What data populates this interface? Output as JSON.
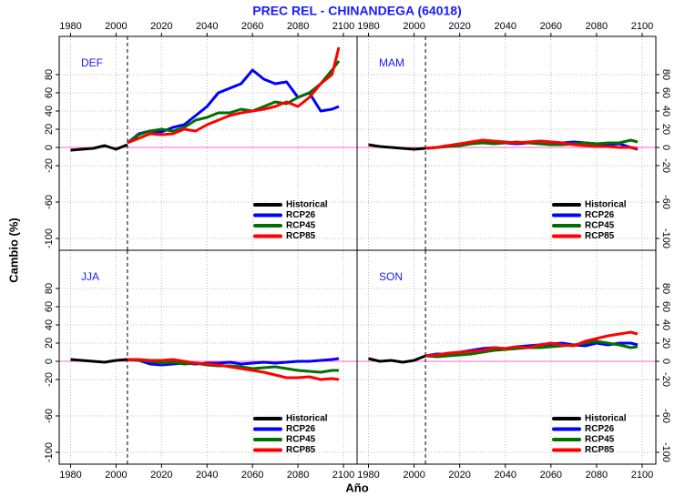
{
  "title": "PREC REL - CHINANDEGA (64018)",
  "xlabel": "Año",
  "ylabel": "Cambio (%)",
  "chart_data": [
    {
      "type": "line",
      "title": "DEF",
      "x": [
        1980,
        1985,
        1990,
        1995,
        2000,
        2005,
        2010,
        2015,
        2020,
        2025,
        2030,
        2035,
        2040,
        2045,
        2050,
        2055,
        2060,
        2065,
        2070,
        2075,
        2080,
        2085,
        2090,
        2095,
        2098
      ],
      "xlim": [
        1975,
        2106
      ],
      "ylim": [
        -113,
        122
      ],
      "xticks": [
        1980,
        2000,
        2020,
        2040,
        2060,
        2080,
        2100
      ],
      "yticks": [
        -100,
        -60,
        -20,
        0,
        20,
        40,
        60,
        80
      ],
      "grid": true,
      "reference_x": 2005,
      "reference_y": 0,
      "legend": "lower-right",
      "series": [
        {
          "name": "Historical",
          "color": "#000000",
          "values": [
            -3,
            -2,
            -1,
            2,
            -2,
            3,
            null,
            null,
            null,
            null,
            null,
            null,
            null,
            null,
            null,
            null,
            null,
            null,
            null,
            null,
            null,
            null,
            null,
            null,
            null
          ]
        },
        {
          "name": "RCP26",
          "color": "#0000ff",
          "values": [
            null,
            null,
            null,
            null,
            null,
            5,
            15,
            18,
            17,
            22,
            25,
            35,
            45,
            60,
            65,
            70,
            85,
            75,
            70,
            72,
            55,
            60,
            40,
            42,
            45
          ]
        },
        {
          "name": "RCP45",
          "color": "#007000",
          "values": [
            null,
            null,
            null,
            null,
            null,
            5,
            14,
            18,
            20,
            18,
            22,
            30,
            33,
            38,
            38,
            42,
            40,
            45,
            50,
            48,
            55,
            60,
            70,
            85,
            95
          ]
        },
        {
          "name": "RCP85",
          "color": "#ff0000",
          "values": [
            null,
            null,
            null,
            null,
            null,
            5,
            10,
            15,
            14,
            15,
            20,
            18,
            25,
            30,
            35,
            38,
            40,
            42,
            45,
            50,
            45,
            55,
            70,
            80,
            110
          ]
        }
      ]
    },
    {
      "type": "line",
      "title": "MAM",
      "x": [
        1980,
        1985,
        1990,
        1995,
        2000,
        2005,
        2010,
        2015,
        2020,
        2025,
        2030,
        2035,
        2040,
        2045,
        2050,
        2055,
        2060,
        2065,
        2070,
        2075,
        2080,
        2085,
        2090,
        2095,
        2098
      ],
      "xlim": [
        1975,
        2106
      ],
      "ylim": [
        -113,
        122
      ],
      "xticks": [
        1980,
        2000,
        2020,
        2040,
        2060,
        2080,
        2100
      ],
      "yticks": [
        -100,
        -60,
        -20,
        0,
        20,
        40,
        60,
        80
      ],
      "grid": true,
      "reference_x": 2005,
      "reference_y": 0,
      "legend": "lower-right",
      "series": [
        {
          "name": "Historical",
          "color": "#000000",
          "values": [
            3,
            1,
            0,
            -1,
            -2,
            -1,
            null,
            null,
            null,
            null,
            null,
            null,
            null,
            null,
            null,
            null,
            null,
            null,
            null,
            null,
            null,
            null,
            null,
            null,
            null
          ]
        },
        {
          "name": "RCP26",
          "color": "#0000ff",
          "values": [
            null,
            null,
            null,
            null,
            null,
            -1,
            0,
            2,
            3,
            5,
            6,
            6,
            5,
            4,
            5,
            7,
            6,
            5,
            6,
            5,
            4,
            3,
            4,
            0,
            -2
          ]
        },
        {
          "name": "RCP45",
          "color": "#007000",
          "values": [
            null,
            null,
            null,
            null,
            null,
            -1,
            0,
            1,
            2,
            4,
            5,
            4,
            5,
            6,
            5,
            4,
            3,
            3,
            4,
            5,
            4,
            5,
            5,
            8,
            6
          ]
        },
        {
          "name": "RCP85",
          "color": "#ff0000",
          "values": [
            null,
            null,
            null,
            null,
            null,
            -1,
            0,
            2,
            4,
            6,
            8,
            7,
            6,
            5,
            6,
            7,
            6,
            5,
            3,
            2,
            1,
            1,
            0,
            0,
            -1
          ]
        }
      ]
    },
    {
      "type": "line",
      "title": "JJA",
      "x": [
        1980,
        1985,
        1990,
        1995,
        2000,
        2005,
        2010,
        2015,
        2020,
        2025,
        2030,
        2035,
        2040,
        2045,
        2050,
        2055,
        2060,
        2065,
        2070,
        2075,
        2080,
        2085,
        2090,
        2095,
        2098
      ],
      "xlim": [
        1975,
        2106
      ],
      "ylim": [
        -113,
        122
      ],
      "xticks": [
        1980,
        2000,
        2020,
        2040,
        2060,
        2080,
        2100
      ],
      "yticks": [
        -100,
        -60,
        -20,
        0,
        20,
        40,
        60,
        80
      ],
      "grid": true,
      "reference_x": 2005,
      "reference_y": 0,
      "legend": "lower-right",
      "series": [
        {
          "name": "Historical",
          "color": "#000000",
          "values": [
            2,
            1,
            0,
            -1,
            1,
            2,
            null,
            null,
            null,
            null,
            null,
            null,
            null,
            null,
            null,
            null,
            null,
            null,
            null,
            null,
            null,
            null,
            null,
            null,
            null
          ]
        },
        {
          "name": "RCP26",
          "color": "#0000ff",
          "values": [
            null,
            null,
            null,
            null,
            null,
            2,
            1,
            -3,
            -4,
            -3,
            -2,
            -3,
            -2,
            -2,
            -1,
            -3,
            -2,
            -1,
            -2,
            -1,
            0,
            0,
            1,
            2,
            3
          ]
        },
        {
          "name": "RCP45",
          "color": "#007000",
          "values": [
            null,
            null,
            null,
            null,
            null,
            2,
            1,
            0,
            -2,
            -1,
            -3,
            -2,
            -4,
            -5,
            -5,
            -6,
            -8,
            -7,
            -6,
            -8,
            -10,
            -11,
            -12,
            -10,
            -10
          ]
        },
        {
          "name": "RCP85",
          "color": "#ff0000",
          "values": [
            null,
            null,
            null,
            null,
            null,
            2,
            2,
            1,
            1,
            2,
            0,
            -2,
            -3,
            -4,
            -6,
            -8,
            -10,
            -12,
            -15,
            -18,
            -18,
            -17,
            -20,
            -19,
            -20
          ]
        }
      ]
    },
    {
      "type": "line",
      "title": "SON",
      "x": [
        1980,
        1985,
        1990,
        1995,
        2000,
        2005,
        2010,
        2015,
        2020,
        2025,
        2030,
        2035,
        2040,
        2045,
        2050,
        2055,
        2060,
        2065,
        2070,
        2075,
        2080,
        2085,
        2090,
        2095,
        2098
      ],
      "xlim": [
        1975,
        2106
      ],
      "ylim": [
        -113,
        122
      ],
      "xticks": [
        1980,
        2000,
        2020,
        2040,
        2060,
        2080,
        2100
      ],
      "yticks": [
        -100,
        -60,
        -20,
        0,
        20,
        40,
        60,
        80
      ],
      "grid": true,
      "reference_x": 2005,
      "reference_y": 0,
      "legend": "lower-right",
      "series": [
        {
          "name": "Historical",
          "color": "#000000",
          "values": [
            3,
            0,
            1,
            -1,
            1,
            6,
            null,
            null,
            null,
            null,
            null,
            null,
            null,
            null,
            null,
            null,
            null,
            null,
            null,
            null,
            null,
            null,
            null,
            null,
            null
          ]
        },
        {
          "name": "RCP26",
          "color": "#0000ff",
          "values": [
            null,
            null,
            null,
            null,
            null,
            6,
            8,
            8,
            10,
            12,
            14,
            15,
            14,
            16,
            17,
            18,
            19,
            20,
            18,
            17,
            20,
            18,
            20,
            20,
            18
          ]
        },
        {
          "name": "RCP45",
          "color": "#007000",
          "values": [
            null,
            null,
            null,
            null,
            null,
            6,
            5,
            6,
            7,
            8,
            10,
            12,
            13,
            14,
            15,
            15,
            16,
            17,
            18,
            20,
            22,
            20,
            18,
            15,
            16
          ]
        },
        {
          "name": "RCP85",
          "color": "#ff0000",
          "values": [
            null,
            null,
            null,
            null,
            null,
            6,
            7,
            9,
            10,
            11,
            12,
            15,
            14,
            16,
            15,
            18,
            20,
            18,
            17,
            22,
            25,
            28,
            30,
            32,
            30
          ]
        }
      ]
    }
  ]
}
